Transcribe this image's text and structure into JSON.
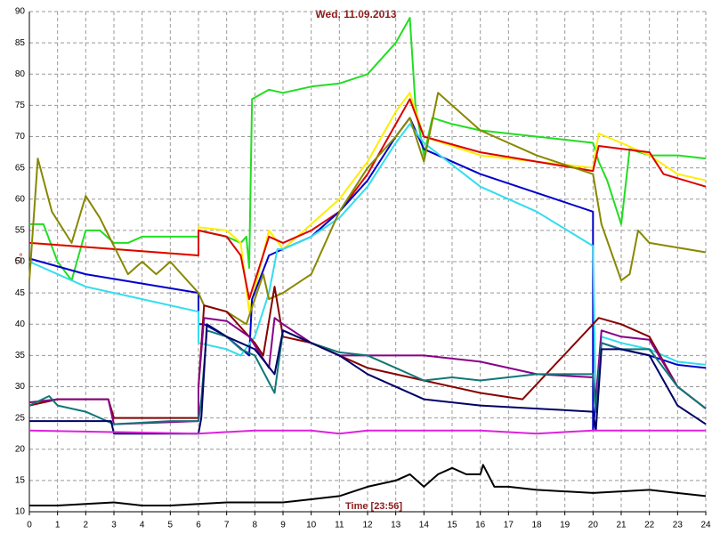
{
  "chart_data": {
    "type": "line",
    "title": "Wed, 11.09.2013",
    "y_label": "°C",
    "annotation": "Time [23:56]",
    "xlim": [
      0,
      24
    ],
    "ylim": [
      10,
      90
    ],
    "xticks": [
      0,
      1,
      2,
      3,
      4,
      5,
      6,
      7,
      8,
      9,
      10,
      11,
      12,
      13,
      14,
      15,
      16,
      17,
      18,
      19,
      20,
      21,
      22,
      23,
      24
    ],
    "yticks": [
      10,
      15,
      20,
      25,
      30,
      35,
      40,
      45,
      50,
      55,
      60,
      65,
      70,
      75,
      80,
      85,
      90
    ],
    "grid": true,
    "series": [
      {
        "color": "#22dd22",
        "x": [
          0,
          0.5,
          1,
          1.5,
          2,
          2.5,
          3,
          3.5,
          4,
          5,
          6,
          6,
          7,
          7.5,
          7.7,
          7.8,
          7.9,
          8.5,
          9,
          10,
          11,
          12,
          13,
          13.5,
          13.7,
          14,
          14.3,
          15,
          16,
          18,
          20,
          20.2,
          20.5,
          21,
          21.3,
          22,
          23,
          24
        ],
        "values": [
          56,
          56,
          50,
          47,
          55,
          55,
          53,
          53,
          54,
          54,
          54,
          55,
          54,
          53,
          54,
          49,
          76,
          77.5,
          77,
          78,
          78.5,
          80,
          85,
          89,
          75,
          67,
          73,
          72,
          71,
          70,
          69,
          66,
          63,
          56,
          68,
          67,
          67,
          66.5
        ]
      },
      {
        "color": "#ffee00",
        "x": [
          0,
          3,
          6,
          6,
          7,
          7.5,
          7.8,
          8.5,
          9,
          10,
          11,
          12,
          13,
          13.5,
          14,
          16,
          18,
          20,
          20.2,
          21,
          22,
          23,
          24
        ],
        "values": [
          53,
          52,
          51,
          55.5,
          55,
          53,
          42,
          55,
          52,
          56,
          60,
          66,
          74,
          77,
          70,
          67,
          66,
          65,
          70.5,
          69,
          67,
          64,
          63
        ]
      },
      {
        "color": "#dd0000",
        "x": [
          0,
          3,
          6,
          6,
          7,
          7.5,
          7.8,
          8.5,
          9,
          10,
          11,
          12,
          13,
          13.5,
          14,
          16,
          18,
          20,
          20.2,
          22,
          22.5,
          24
        ],
        "values": [
          53,
          52,
          51,
          55,
          54,
          51,
          44,
          54,
          53,
          55,
          58,
          64,
          72,
          76,
          70,
          67.5,
          66,
          64.5,
          68.5,
          67.5,
          64,
          62
        ]
      },
      {
        "color": "#0000cc",
        "x": [
          0,
          2,
          4,
          6,
          6,
          6.2,
          7,
          7.8,
          7.9,
          8.5,
          9,
          10,
          11,
          12,
          13,
          13.5,
          14,
          15,
          16,
          18,
          20,
          20,
          20.3,
          21,
          22,
          23,
          24
        ],
        "values": [
          50.5,
          48,
          46.5,
          45,
          40,
          40,
          38,
          35,
          44,
          51,
          52,
          54,
          58,
          63,
          70,
          73,
          68,
          66,
          64,
          61,
          58,
          23,
          37,
          36,
          35,
          33.5,
          33
        ]
      },
      {
        "color": "#33ddee",
        "x": [
          0,
          2,
          4,
          6,
          6,
          7,
          7.5,
          8,
          8.5,
          8.8,
          9,
          10,
          11,
          12,
          13,
          13.5,
          14,
          16,
          18,
          20,
          20.1,
          20.3,
          21,
          22,
          23,
          24
        ],
        "values": [
          50,
          46,
          44,
          42,
          37,
          36,
          35,
          38,
          45,
          52,
          52,
          54,
          57,
          62,
          69,
          72,
          69,
          62,
          58,
          52.5,
          26,
          38,
          37,
          36,
          34,
          33.5
        ]
      },
      {
        "color": "#888800",
        "x": [
          0,
          0.3,
          0.8,
          1.5,
          2,
          2.5,
          3.5,
          4,
          4.5,
          5,
          6,
          6.2,
          7,
          7.7,
          8.3,
          8.5,
          9,
          10,
          11,
          12,
          13,
          13.5,
          14,
          14.5,
          16,
          18,
          20,
          20.3,
          21,
          21.3,
          21.6,
          22,
          24
        ],
        "values": [
          47,
          66.5,
          58,
          53,
          60.5,
          57,
          48,
          50,
          48,
          50,
          45,
          43,
          42,
          40,
          48,
          44,
          45,
          48,
          58,
          65,
          70,
          73,
          66,
          77,
          71,
          67,
          64,
          56,
          47,
          48,
          55,
          53,
          51.5
        ]
      },
      {
        "color": "#880000",
        "x": [
          0,
          1,
          2,
          2.8,
          3,
          6,
          6,
          6.2,
          7,
          8,
          8.3,
          8.7,
          9,
          10,
          11,
          12,
          14,
          16,
          17.5,
          20,
          20.2,
          21,
          22,
          23,
          24
        ],
        "values": [
          27,
          28,
          28,
          28,
          25,
          25,
          30,
          43,
          42,
          37,
          35,
          46,
          38,
          37,
          35,
          33,
          31,
          29,
          28,
          40,
          41,
          40,
          38,
          30,
          26.5
        ]
      },
      {
        "color": "#880088",
        "x": [
          0,
          1,
          2.8,
          3,
          6,
          6,
          6.2,
          7,
          7.8,
          8.5,
          8.7,
          9,
          10,
          11,
          12,
          14,
          16,
          18,
          20,
          20.1,
          20.3,
          21,
          22,
          23,
          24
        ],
        "values": [
          27.5,
          28,
          28,
          24,
          24.5,
          30,
          41,
          40.5,
          38,
          33,
          41,
          40,
          37,
          35,
          35,
          35,
          34,
          32,
          31.5,
          28,
          39,
          38,
          37.5,
          30,
          26.5
        ]
      },
      {
        "color": "#117777",
        "x": [
          0,
          0.7,
          1,
          2,
          3,
          5,
          6,
          6.1,
          6.3,
          7,
          7.5,
          8,
          8.7,
          9,
          10,
          11,
          12,
          13,
          14,
          15,
          16,
          18,
          20,
          20.1,
          20.3,
          21,
          22,
          23,
          24
        ],
        "values": [
          27,
          28.5,
          27,
          26,
          24,
          24.5,
          24.5,
          28,
          39,
          38,
          36,
          35,
          29,
          39,
          37,
          35.5,
          35,
          33,
          31,
          31.5,
          31,
          32,
          32,
          26,
          37,
          36,
          36,
          30,
          26.5
        ]
      },
      {
        "color": "#000066",
        "x": [
          0,
          2,
          2.9,
          3,
          6,
          6.1,
          6.3,
          7,
          7.5,
          8,
          8.7,
          9,
          10,
          11,
          12,
          14,
          16,
          18,
          20,
          20.1,
          20.3,
          21,
          22,
          23,
          24
        ],
        "values": [
          24.5,
          24.5,
          24.5,
          22.5,
          22.5,
          25,
          40,
          38,
          37,
          36,
          32,
          39,
          37,
          35,
          32,
          28,
          27,
          26.5,
          26,
          23,
          36,
          36,
          35,
          27,
          24
        ]
      },
      {
        "color": "#dd22dd",
        "x": [
          0,
          6,
          8,
          10,
          11,
          12,
          16,
          18,
          20,
          24
        ],
        "values": [
          23,
          22.5,
          23,
          23,
          22.5,
          23,
          23,
          22.5,
          23,
          23
        ]
      },
      {
        "color": "#000000",
        "x": [
          0,
          1,
          3,
          4,
          5,
          7,
          9,
          10,
          11,
          12,
          13,
          13.5,
          14,
          14.5,
          15,
          15.5,
          16,
          16.1,
          16.5,
          17,
          18,
          20,
          22,
          24
        ],
        "values": [
          11,
          11,
          11.5,
          11,
          11,
          11.5,
          11.5,
          12,
          12.5,
          14,
          15,
          16,
          14,
          16,
          17,
          16,
          16,
          17.5,
          14,
          14,
          13.5,
          13,
          13.5,
          12.5
        ]
      }
    ]
  }
}
